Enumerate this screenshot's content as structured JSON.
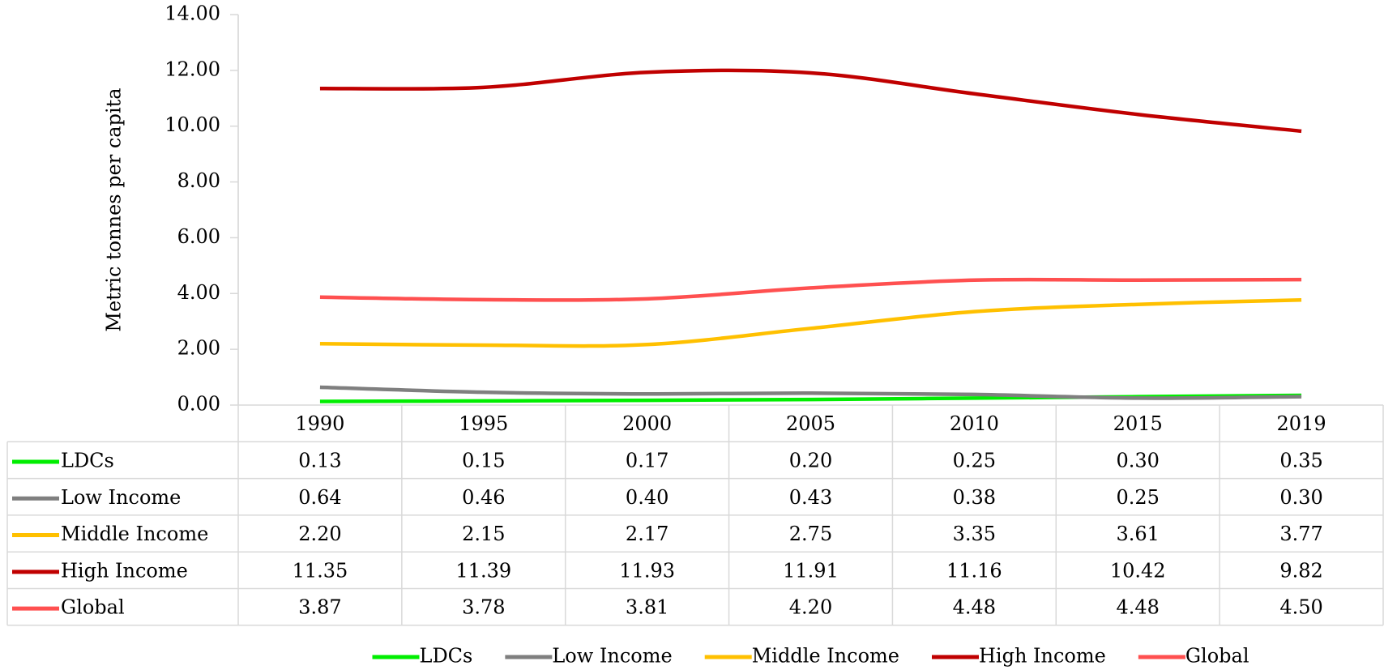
{
  "chart_data": {
    "type": "line",
    "y_label": "Metric tonnes per capita",
    "categories": [
      "1990",
      "1995",
      "2000",
      "2005",
      "2010",
      "2015",
      "2019"
    ],
    "ylim": [
      0,
      14
    ],
    "yticks": [
      {
        "value": 0,
        "label": "0.00"
      },
      {
        "value": 2,
        "label": "2.00"
      },
      {
        "value": 4,
        "label": "4.00"
      },
      {
        "value": 6,
        "label": "6.00"
      },
      {
        "value": 8,
        "label": "8.00"
      },
      {
        "value": 10,
        "label": "10.00"
      },
      {
        "value": 12,
        "label": "12.00"
      },
      {
        "value": 14,
        "label": "14.00"
      }
    ],
    "series": [
      {
        "name": "LDCs",
        "color": "#00ee00",
        "values": [
          0.13,
          0.15,
          0.17,
          0.2,
          0.25,
          0.3,
          0.35
        ],
        "value_labels": [
          "0.13",
          "0.15",
          "0.17",
          "0.20",
          "0.25",
          "0.30",
          "0.35"
        ]
      },
      {
        "name": "Low Income",
        "color": "#7f7f7f",
        "values": [
          0.64,
          0.46,
          0.4,
          0.43,
          0.38,
          0.25,
          0.3
        ],
        "value_labels": [
          "0.64",
          "0.46",
          "0.40",
          "0.43",
          "0.38",
          "0.25",
          "0.30"
        ]
      },
      {
        "name": "Middle Income",
        "color": "#ffc000",
        "values": [
          2.2,
          2.15,
          2.17,
          2.75,
          3.35,
          3.61,
          3.77
        ],
        "value_labels": [
          "2.20",
          "2.15",
          "2.17",
          "2.75",
          "3.35",
          "3.61",
          "3.77"
        ]
      },
      {
        "name": "High Income",
        "color": "#c00000",
        "values": [
          11.35,
          11.39,
          11.93,
          11.91,
          11.16,
          10.42,
          9.82
        ],
        "value_labels": [
          "11.35",
          "11.39",
          "11.93",
          "11.91",
          "11.16",
          "10.42",
          "9.82"
        ]
      },
      {
        "name": "Global",
        "color": "#ff5050",
        "values": [
          3.87,
          3.78,
          3.81,
          4.2,
          4.48,
          4.48,
          4.5
        ],
        "value_labels": [
          "3.87",
          "3.78",
          "3.81",
          "4.20",
          "4.48",
          "4.48",
          "4.50"
        ]
      }
    ]
  }
}
